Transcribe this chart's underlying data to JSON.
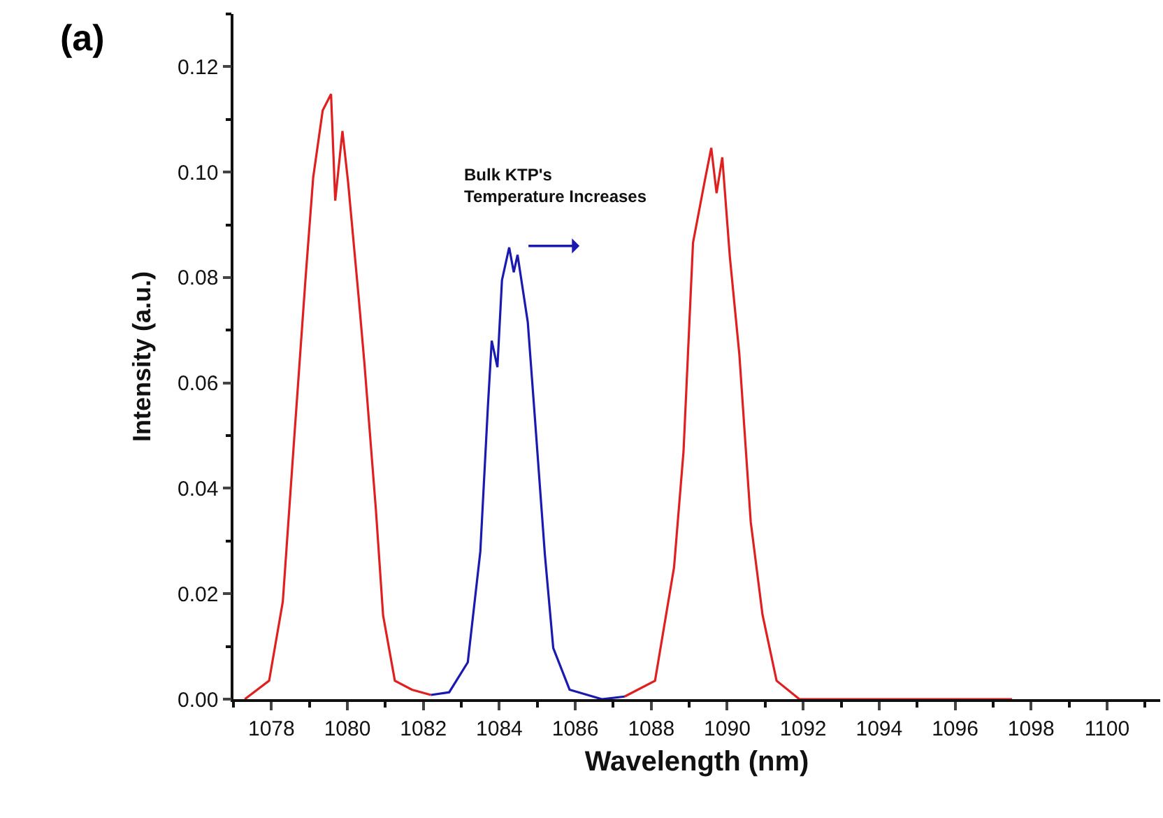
{
  "chart_data": {
    "type": "line",
    "xlabel": "Wavelength (nm)",
    "ylabel": "Intensity (a.u.)",
    "xlim": [
      1077,
      1101.4
    ],
    "xticks": [
      1078,
      1080,
      1082,
      1084,
      1086,
      1088,
      1090,
      1092,
      1094,
      1096,
      1098,
      1100
    ],
    "ylim": [
      0,
      0.13
    ],
    "yticks": [
      {
        "value": 0,
        "label": "0.00"
      },
      {
        "value": 0.02,
        "label": "0.02"
      },
      {
        "value": 0.04,
        "label": "0.04"
      },
      {
        "value": 0.06,
        "label": "0.06"
      },
      {
        "value": 0.08,
        "label": "0.08"
      },
      {
        "value": 0.1,
        "label": "0.10"
      },
      {
        "value": 0.12,
        "label": "0.12"
      }
    ],
    "grid": false,
    "marker": "none",
    "line_style": "solid",
    "annotations": [
      "(a)",
      {
        "text": "Bulk KTP's\nTemperature Increases",
        "x": 1084.4,
        "y": 0.086
      }
    ],
    "series": [
      {
        "color": "#e02020",
        "x": [
          1077.3,
          1077.94,
          1078.3,
          1078.6,
          1078.9,
          1079.1,
          1079.35,
          1079.57,
          1079.68,
          1079.87,
          1080.02,
          1080.3,
          1080.45,
          1080.75,
          1080.94,
          1081.25,
          1081.7,
          1082.2,
          1085,
          1087.3,
          1088.1,
          1088.6,
          1088.85,
          1089.1,
          1089.4,
          1089.58,
          1089.72,
          1089.87,
          1090.07,
          1090.32,
          1090.62,
          1090.93,
          1091.3,
          1091.9,
          1097.5
        ],
        "values": [
          0.0,
          0.0035,
          0.0185,
          0.0495,
          0.08,
          0.099,
          0.1117,
          0.1148,
          0.0946,
          0.1078,
          0.098,
          0.076,
          0.0636,
          0.036,
          0.0159,
          0.0035,
          0.0018,
          0.0008,
          null,
          0.0005,
          0.0035,
          0.025,
          0.047,
          0.0866,
          0.098,
          0.1046,
          0.096,
          0.1028,
          0.0839,
          0.0654,
          0.0336,
          0.016,
          0.0035,
          0.0,
          0.0
        ]
      },
      {
        "color": "#1a1ab0",
        "x": [
          1082.2,
          1082.68,
          1083.17,
          1083.5,
          1083.7,
          1083.8,
          1083.95,
          1084.07,
          1084.26,
          1084.38,
          1084.48,
          1084.75,
          1084.93,
          1085.2,
          1085.42,
          1085.85,
          1086.7,
          1087.3
        ],
        "values": [
          0.0008,
          0.0013,
          0.007,
          0.028,
          0.0556,
          0.068,
          0.063,
          0.0795,
          0.0857,
          0.081,
          0.0843,
          0.0715,
          0.054,
          0.0274,
          0.0097,
          0.0018,
          0.0,
          0.0005
        ]
      }
    ]
  }
}
